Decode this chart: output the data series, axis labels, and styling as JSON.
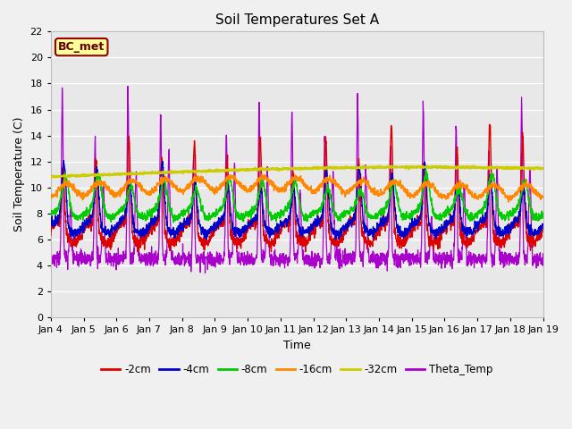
{
  "title": "Soil Temperatures Set A",
  "xlabel": "Time",
  "ylabel": "Soil Temperature (C)",
  "ylim": [
    0,
    22
  ],
  "annotation": "BC_met",
  "series_colors": {
    "-2cm": "#dd0000",
    "-4cm": "#0000cc",
    "-8cm": "#00cc00",
    "-16cm": "#ff8800",
    "-32cm": "#cccc00",
    "Theta_Temp": "#aa00cc"
  },
  "legend_labels": [
    "-2cm",
    "-4cm",
    "-8cm",
    "-16cm",
    "-32cm",
    "Theta_Temp"
  ],
  "x_tick_labels": [
    "Jan 4",
    "Jan 5",
    "Jan 6",
    "Jan 7",
    "Jan 8",
    "Jan 9",
    "Jan 10",
    "Jan 11",
    "Jan 12",
    "Jan 13",
    "Jan 14",
    "Jan 15",
    "Jan 16",
    "Jan 17",
    "Jan 18",
    "Jan 19"
  ],
  "fig_bg_color": "#f0f0f0",
  "plot_bg_color": "#e8e8e8",
  "grid_color": "#ffffff",
  "title_fontsize": 11,
  "axis_label_fontsize": 9,
  "tick_fontsize": 8,
  "annotation_bg": "#ffff99",
  "annotation_border": "#990000",
  "annotation_text_color": "#660000"
}
